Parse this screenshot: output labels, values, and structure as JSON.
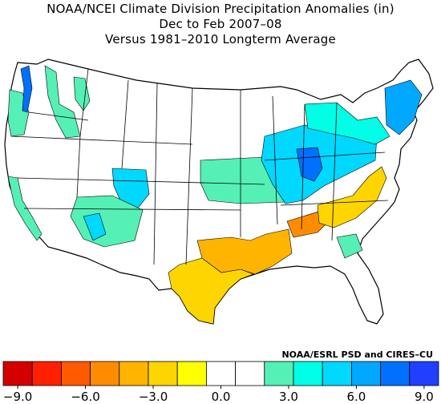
{
  "title": {
    "line1": "NOAA/NCEI Climate Division Precipitation Anomalies (in)",
    "line2": "Dec to Feb 2007–08",
    "line3": "Versus 1981–2010 Longterm Average"
  },
  "credit": "NOAA/ESRL PSD and CIRES–CU",
  "legend": {
    "colors": [
      "#d40000",
      "#ff2000",
      "#ff5a00",
      "#ff8c00",
      "#ffb400",
      "#ffd500",
      "#ffff00",
      "#ffffff",
      "#ffffff",
      "#55f0b5",
      "#00ffe6",
      "#00d8ff",
      "#00a8ff",
      "#0070ff",
      "#2040ff"
    ],
    "tick_labels": [
      "−9.0",
      "−6.0",
      "−3.0",
      "0.0",
      "3.0",
      "6.0",
      "9.0"
    ]
  },
  "map": {
    "land_color": "#ffffff",
    "border_color": "#000000",
    "anomaly_regions": [
      {
        "name": "pacific-northwest-coast",
        "color": "#55f0b5"
      },
      {
        "name": "washington-cascades",
        "color": "#0070ff"
      },
      {
        "name": "northern-rockies",
        "color": "#55f0b5"
      },
      {
        "name": "california",
        "color": "#55f0b5"
      },
      {
        "name": "utah-colorado",
        "color": "#00d8ff"
      },
      {
        "name": "arizona-new-mexico",
        "color": "#55f0b5"
      },
      {
        "name": "central-plains",
        "color": "#55f0b5"
      },
      {
        "name": "midwest-ohio-valley",
        "color": "#00d8ff"
      },
      {
        "name": "indiana-ohio-core",
        "color": "#0070ff"
      },
      {
        "name": "great-lakes-northeast",
        "color": "#00ffe6"
      },
      {
        "name": "new-england",
        "color": "#00a8ff"
      },
      {
        "name": "texas-drought",
        "color": "#ffd500"
      },
      {
        "name": "east-texas-lower-mississippi",
        "color": "#ffb400"
      },
      {
        "name": "tennessee-valley",
        "color": "#ff8c00"
      },
      {
        "name": "southeast-piedmont",
        "color": "#ffd500"
      },
      {
        "name": "florida-georgia",
        "color": "#55f0b5"
      }
    ]
  }
}
